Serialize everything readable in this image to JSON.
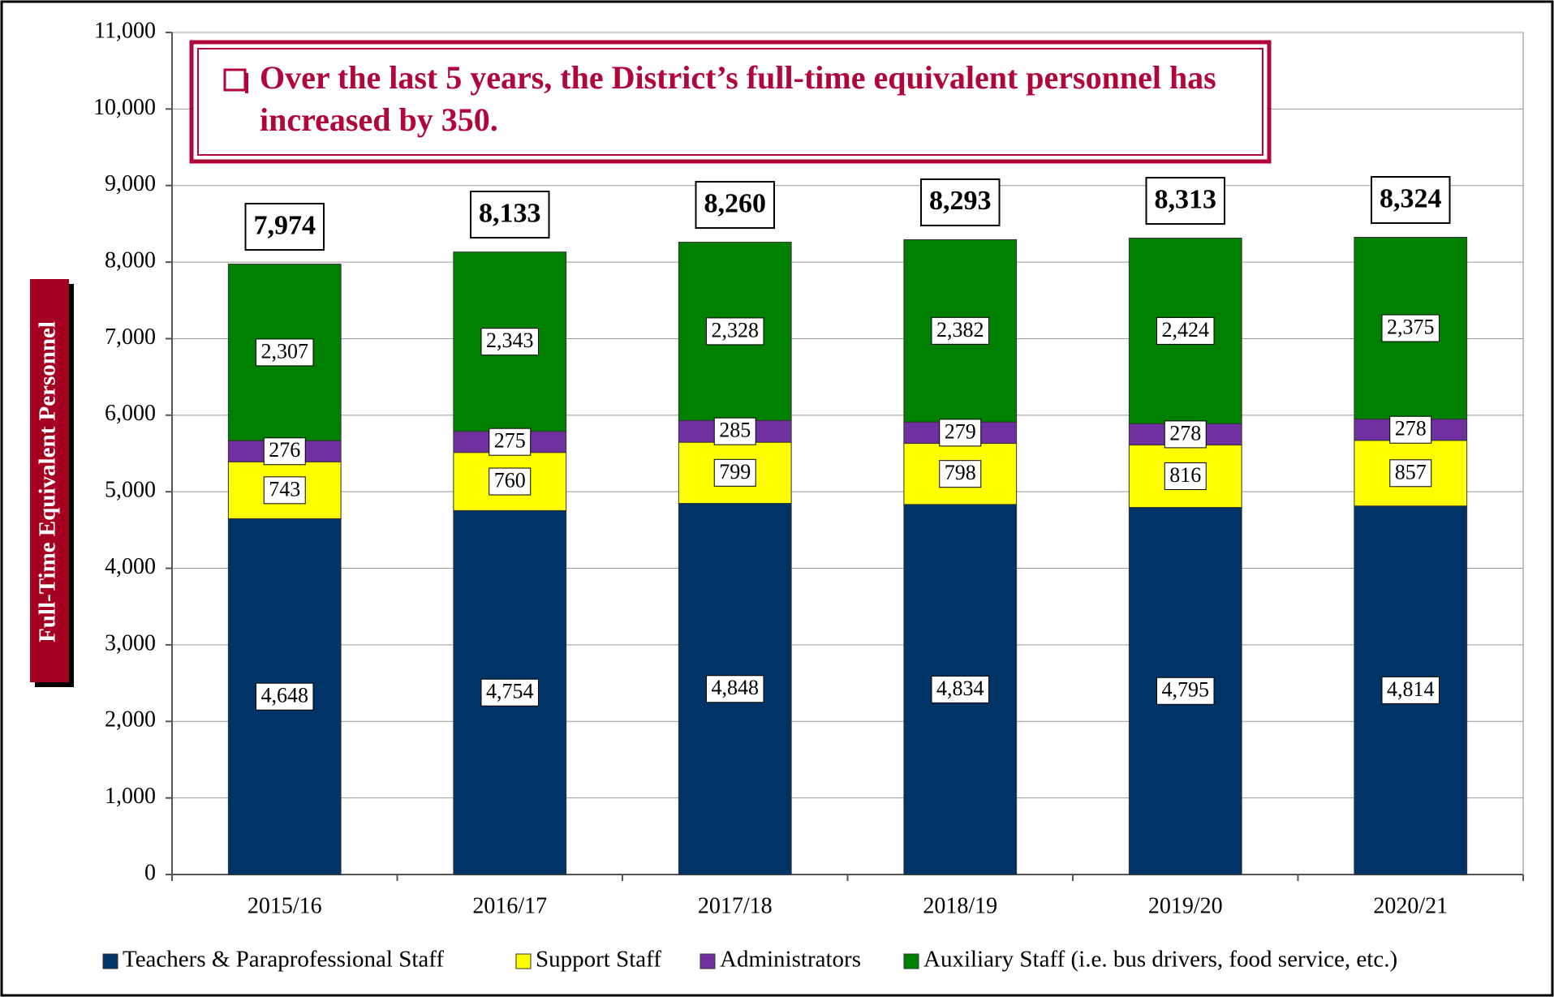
{
  "chart_data": {
    "type": "stacked_bar",
    "annotation": "Over the last 5 years, the District’s full-time equivalent personnel has increased by 350.",
    "y_label": "Full-Time Equivalent Personnel",
    "categories": [
      "2015/16",
      "2016/17",
      "2017/18",
      "2018/19",
      "2019/20",
      "2020/21"
    ],
    "series": [
      {
        "name": "Teachers & Paraprofessional Staff",
        "color": "#003366",
        "values": [
          4648,
          4754,
          4848,
          4834,
          4795,
          4814
        ],
        "value_labels": [
          "4,648",
          "4,754",
          "4,848",
          "4,834",
          "4,795",
          "4,814"
        ]
      },
      {
        "name": "Support Staff",
        "color": "#ffff00",
        "values": [
          743,
          760,
          799,
          798,
          816,
          857
        ]
      },
      {
        "name": "Administrators",
        "color": "#7030a0",
        "values": [
          276,
          275,
          285,
          279,
          278,
          278
        ]
      },
      {
        "name": "Auxiliary Staff (i.e. bus drivers, food service, etc.)",
        "color": "#008000",
        "values": [
          2307,
          2343,
          2328,
          2382,
          2424,
          2375
        ],
        "value_labels": [
          "2,307",
          "2,343",
          "2,328",
          "2,382",
          "2,424",
          "2,375"
        ]
      }
    ],
    "totals": {
      "values": [
        7974,
        8133,
        8260,
        8293,
        8313,
        8324
      ],
      "value_labels": [
        "7,974",
        "8,133",
        "8,260",
        "8,293",
        "8,313",
        "8,324"
      ]
    },
    "ylim": [
      0,
      11000
    ],
    "yticks": [
      0,
      {
        "value": 1000,
        "label": "1,000"
      },
      {
        "value": 2000,
        "label": "2,000"
      },
      {
        "value": 3000,
        "label": "3,000"
      },
      {
        "value": 4000,
        "label": "4,000"
      },
      {
        "value": 5000,
        "label": "5,000"
      },
      {
        "value": 6000,
        "label": "6,000"
      },
      {
        "value": 7000,
        "label": "7,000"
      },
      {
        "value": 8000,
        "label": "8,000"
      },
      {
        "value": 9000,
        "label": "9,000"
      },
      {
        "value": 10000,
        "label": "10,000"
      },
      {
        "value": 11000,
        "label": "11,000"
      }
    ],
    "grid": true,
    "legend": "bottom"
  }
}
